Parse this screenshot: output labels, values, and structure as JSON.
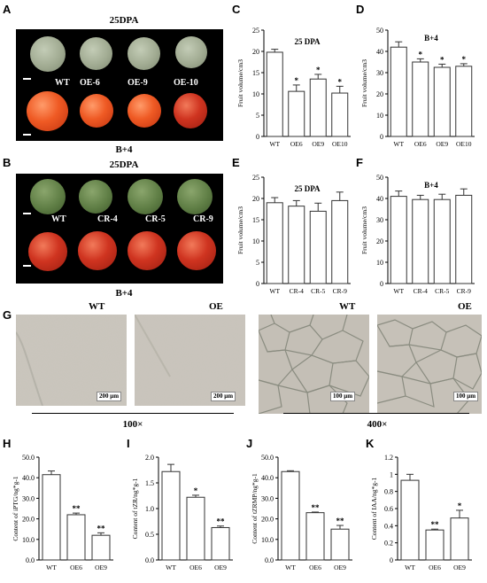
{
  "panels": {
    "A": {
      "letter": "A",
      "top_title": "25DPA",
      "bottom_title": "B+4",
      "labels": [
        "WT",
        "OE-6",
        "OE-9",
        "OE-10"
      ]
    },
    "B": {
      "letter": "B",
      "top_title": "25DPA",
      "bottom_title": "B+4",
      "labels": [
        "WT",
        "CR-4",
        "CR-5",
        "CR-9"
      ]
    },
    "G": {
      "letter": "G",
      "labels": [
        "WT",
        "OE",
        "WT",
        "OE"
      ],
      "scale_bars": [
        "200 μm",
        "200 μm",
        "100 μm",
        "100 μm"
      ],
      "magnifications": [
        "100×",
        "400×"
      ]
    }
  },
  "chart_data": [
    {
      "id": "C",
      "type": "bar",
      "title": "25 DPA",
      "ylabel": "Fruit volume/cm3",
      "xlabel": "",
      "categories": [
        "WT",
        "OE6",
        "OE9",
        "OE10"
      ],
      "values": [
        19.8,
        10.6,
        13.5,
        10.2
      ],
      "errors": [
        0.7,
        1.5,
        1.1,
        1.6
      ],
      "sig": [
        "",
        "*",
        "*",
        "*"
      ],
      "ylim": [
        0,
        25
      ],
      "yticks": [
        "0",
        "5",
        "10",
        "15",
        "20",
        "25"
      ]
    },
    {
      "id": "D",
      "type": "bar",
      "title": "B+4",
      "ylabel": "Fruit volume/cm3",
      "xlabel": "",
      "categories": [
        "WT",
        "OE6",
        "OE9",
        "OE10"
      ],
      "values": [
        42.0,
        35.0,
        32.5,
        33.0
      ],
      "errors": [
        2.5,
        1.5,
        1.5,
        1.2
      ],
      "sig": [
        "",
        "*",
        "*",
        "*"
      ],
      "ylim": [
        0,
        50
      ],
      "yticks": [
        "0",
        "10",
        "20",
        "30",
        "40",
        "50"
      ]
    },
    {
      "id": "E",
      "type": "bar",
      "title": "25 DPA",
      "ylabel": "Fruit volume/cm3",
      "xlabel": "",
      "categories": [
        "WT",
        "CR-4",
        "CR-5",
        "CR-9"
      ],
      "values": [
        19.0,
        18.2,
        17.0,
        19.5
      ],
      "errors": [
        1.2,
        1.3,
        1.9,
        2.0
      ],
      "sig": [
        "",
        "",
        "",
        ""
      ],
      "ylim": [
        0,
        25
      ],
      "yticks": [
        "0",
        "5",
        "10",
        "15",
        "20",
        "25"
      ]
    },
    {
      "id": "F",
      "type": "bar",
      "title": "B+4",
      "ylabel": "Fruit volume/cm3",
      "xlabel": "",
      "categories": [
        "WT",
        "CR-4",
        "CR-5",
        "CR-9"
      ],
      "values": [
        41.0,
        39.5,
        39.5,
        41.5
      ],
      "errors": [
        2.5,
        2.0,
        2.5,
        3.0
      ],
      "sig": [
        "",
        "",
        "",
        ""
      ],
      "ylim": [
        0,
        50
      ],
      "yticks": [
        "0",
        "10",
        "20",
        "30",
        "40",
        "50"
      ]
    },
    {
      "id": "H",
      "type": "bar",
      "title": "",
      "ylabel": "Content of iPTG/ng*g-1",
      "xlabel": "",
      "categories": [
        "WT",
        "OE6",
        "OE9"
      ],
      "values": [
        41.5,
        22.0,
        12.0
      ],
      "errors": [
        1.8,
        0.8,
        1.2
      ],
      "sig": [
        "",
        "**",
        "**"
      ],
      "ylim": [
        0,
        50
      ],
      "yticks": [
        "0.0",
        "10.0",
        "20.0",
        "30.0",
        "40.0",
        "50.0"
      ]
    },
    {
      "id": "I",
      "type": "bar",
      "title": "",
      "ylabel": "Content of tZR/ng*g-1",
      "xlabel": "",
      "categories": [
        "WT",
        "OE6",
        "OE9"
      ],
      "values": [
        1.72,
        1.22,
        0.63
      ],
      "errors": [
        0.14,
        0.04,
        0.03
      ],
      "sig": [
        "",
        "*",
        "**"
      ],
      "ylim": [
        0,
        2.0
      ],
      "yticks": [
        "0.0",
        "0.5",
        "1.0",
        "1.5",
        "2.0"
      ]
    },
    {
      "id": "J",
      "type": "bar",
      "title": "",
      "ylabel": "Content of tZRMP/ng*g-1",
      "xlabel": "",
      "categories": [
        "WT",
        "OE6",
        "OE9"
      ],
      "values": [
        43.0,
        23.0,
        15.0
      ],
      "errors": [
        0.4,
        0.3,
        1.8
      ],
      "sig": [
        "",
        "**",
        "**"
      ],
      "ylim": [
        0,
        50
      ],
      "yticks": [
        "0.0",
        "10.0",
        "20.0",
        "30.0",
        "40.0",
        "50.0"
      ]
    },
    {
      "id": "K",
      "type": "bar",
      "title": "",
      "ylabel": "Content of IAA/ng*g-1",
      "xlabel": "",
      "categories": [
        "WT",
        "OE6",
        "OE9"
      ],
      "values": [
        0.93,
        0.35,
        0.49
      ],
      "errors": [
        0.07,
        0.01,
        0.09
      ],
      "sig": [
        "",
        "**",
        "*"
      ],
      "ylim": [
        0,
        1.2
      ],
      "yticks": [
        "0",
        "0.2",
        "0.4",
        "0.6",
        "0.8",
        "1",
        "1.2"
      ]
    }
  ],
  "colors": {
    "bar_fill": "#ffffff",
    "bar_stroke": "#333333",
    "photo_bg": "#000000"
  }
}
